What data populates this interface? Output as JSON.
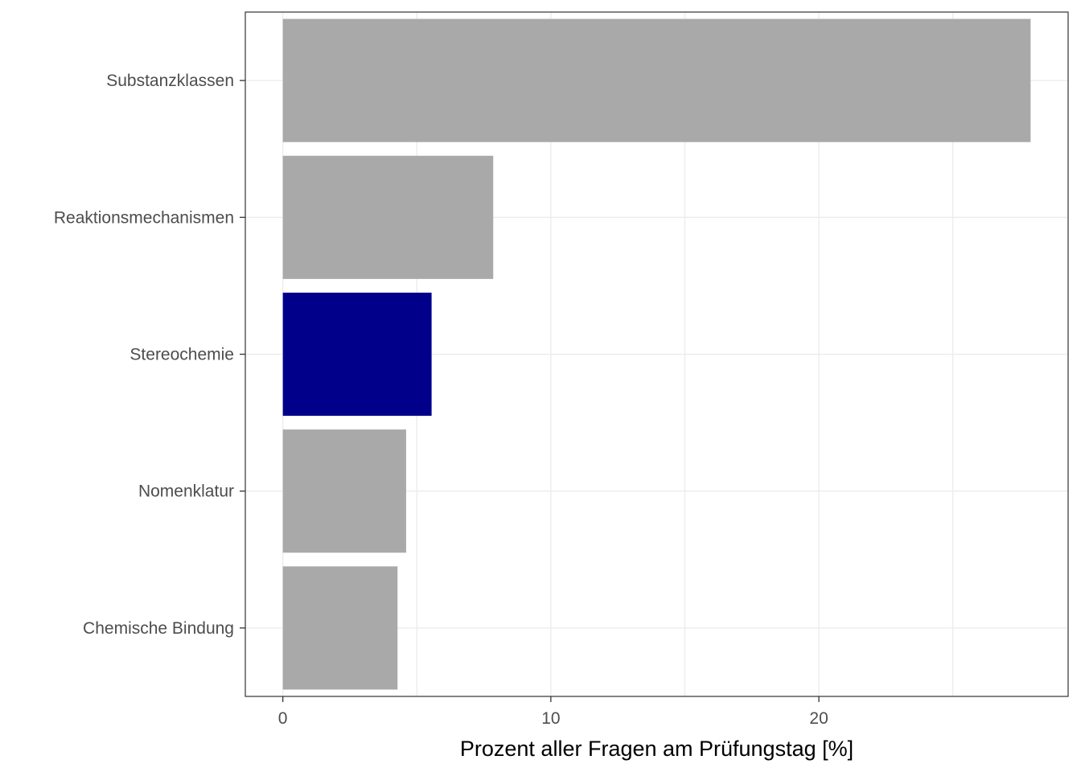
{
  "chart_data": {
    "type": "bar",
    "orientation": "horizontal",
    "categories": [
      "Substanzklassen",
      "Reaktionsmechanismen",
      "Stereochemie",
      "Nomenklatur",
      "Chemische Bindung"
    ],
    "values": [
      27.9,
      7.85,
      5.55,
      4.6,
      4.28
    ],
    "highlight_category": "Stereochemie",
    "xlabel": "Prozent aller Fragen am Prüfungstag [%]",
    "ylabel": "",
    "xlim": [
      -1.4,
      29.3
    ],
    "xticks": [
      0,
      10,
      20
    ],
    "xtick_labels": [
      "0",
      "10",
      "20"
    ],
    "grid": true,
    "colors": {
      "bar": "#A9A9A9",
      "highlight": "#00008B",
      "grid": "#EBEBEB",
      "panel_border": "#333333",
      "tick_label": "#4D4D4D"
    }
  }
}
